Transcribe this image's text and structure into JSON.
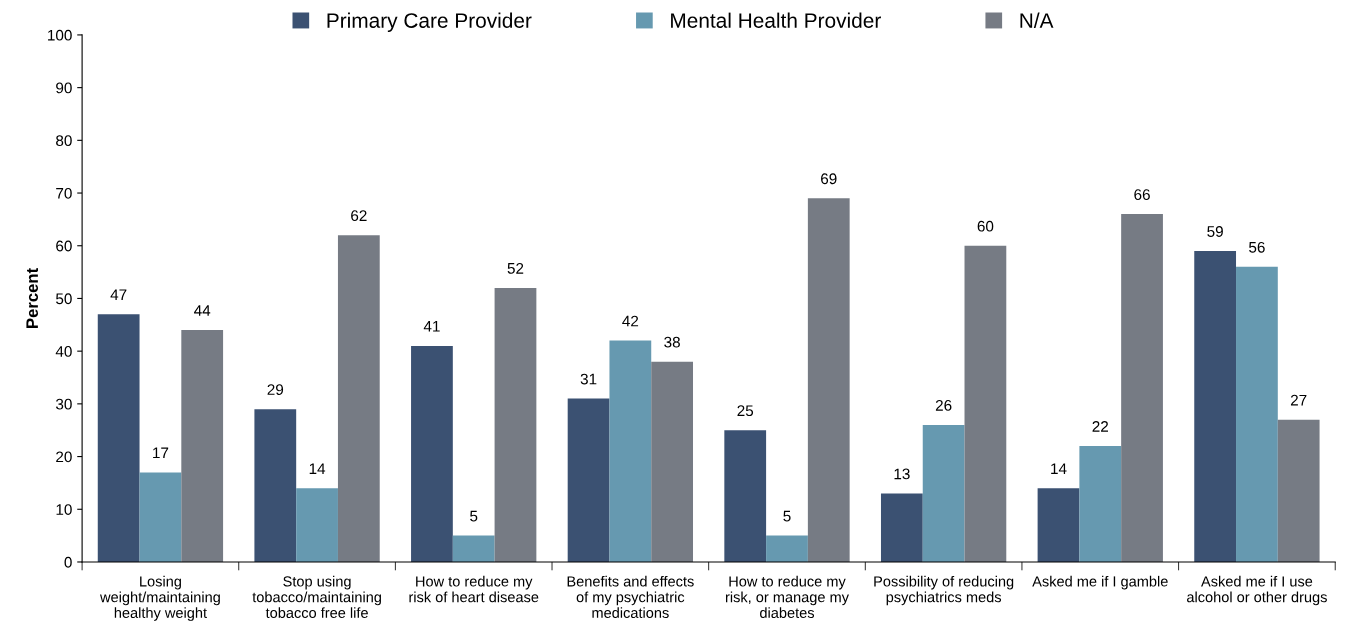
{
  "chart_data": {
    "type": "bar",
    "ylabel": "Percent",
    "categories": [
      "Losing\nweight/maintaining\nhealthy weight",
      "Stop using\ntobacco/maintaining\ntobacco free life",
      "How to reduce my\nrisk of heart disease",
      "Benefits and effects\nof my psychiatric\nmedications",
      "How to reduce my\nrisk, or manage my\ndiabetes",
      "Possibility of reducing\npsychiatrics meds",
      "Asked me if I gamble",
      "Asked me if I use\nalcohol or other drugs"
    ],
    "series": [
      {
        "name": "Primary Care Provider",
        "color": "#3b5172",
        "values": [
          47,
          29,
          41,
          31,
          25,
          13,
          14,
          59
        ]
      },
      {
        "name": "Mental Health Provider",
        "color": "#6699b0",
        "values": [
          17,
          14,
          5,
          42,
          5,
          26,
          22,
          56
        ]
      },
      {
        "name": "N/A",
        "color": "#767b84",
        "values": [
          44,
          62,
          52,
          38,
          69,
          60,
          66,
          27
        ]
      }
    ],
    "ylim": [
      0,
      100
    ],
    "yticks": [
      0,
      10,
      20,
      30,
      40,
      50,
      60,
      70,
      80,
      90,
      100
    ],
    "data_labels": true,
    "grid": false,
    "legend": "top"
  }
}
